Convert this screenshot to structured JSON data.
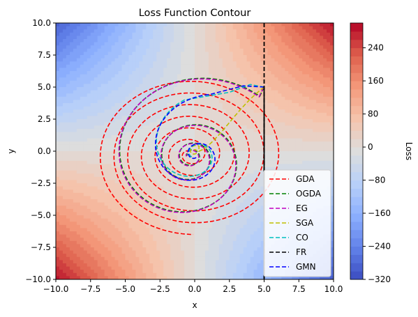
{
  "chart_data": {
    "type": "contour",
    "title": "Loss Function Contour",
    "xlabel": "x",
    "ylabel": "y",
    "xlim": [
      -10,
      10
    ],
    "ylim": [
      -10,
      10
    ],
    "xticks": [
      "−10.0",
      "−7.5",
      "−5.0",
      "−2.5",
      "0.0",
      "2.5",
      "5.0",
      "7.5",
      "10.0"
    ],
    "yticks": [
      "−10.0",
      "−7.5",
      "−5.0",
      "−2.5",
      "0.0",
      "2.5",
      "5.0",
      "7.5",
      "10.0"
    ],
    "colorbar": {
      "label": "Loss",
      "range": [
        -320,
        300
      ],
      "ticks": [
        "240",
        "160",
        "80",
        "0",
        "−80",
        "−160",
        "−240",
        "−320"
      ],
      "tick_values": [
        240,
        160,
        80,
        0,
        -80,
        -160,
        -240,
        -320
      ],
      "colormap": "coolwarm"
    },
    "surface": "f(x,y) = 2.93·x·y (saddle)",
    "legend_position": "lower right",
    "series": [
      {
        "name": "GDA",
        "color": "#ff0000",
        "start": [
          5,
          5
        ],
        "end": [
          0,
          0
        ],
        "path": "expanding spiral, outer radius ≈ 6.2"
      },
      {
        "name": "OGDA",
        "color": "#008000",
        "start": [
          5,
          5
        ],
        "end": [
          0,
          0
        ],
        "path": "converging spiral"
      },
      {
        "name": "EG",
        "color": "#c000c0",
        "start": [
          5,
          5
        ],
        "end": [
          0,
          0
        ],
        "path": "converging spiral"
      },
      {
        "name": "SGA",
        "color": "#bfbf00",
        "start": [
          5,
          5
        ],
        "end": [
          0,
          0
        ],
        "path": "direct curve to origin"
      },
      {
        "name": "CO",
        "color": "#00bfbf",
        "start": [
          5,
          5
        ],
        "end": [
          0,
          0
        ],
        "path": "short spiral to origin"
      },
      {
        "name": "FR",
        "color": "#000000",
        "start": [
          5,
          5
        ],
        "end": [
          5,
          -10
        ],
        "path": "vertical line x = 5"
      },
      {
        "name": "GMN",
        "color": "#0000ff",
        "start": [
          5,
          5
        ],
        "end": [
          0,
          0
        ],
        "path": "short spiral to origin"
      }
    ]
  }
}
